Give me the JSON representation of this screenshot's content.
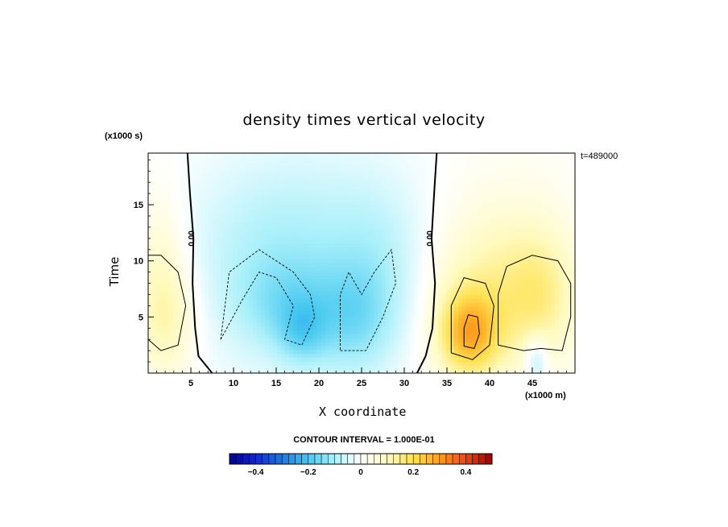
{
  "chart_data": {
    "type": "heatmap",
    "title": "density times vertical velocity",
    "xlabel": "X coordinate",
    "ylabel": "Time",
    "x_unit": "(x1000 m)",
    "y_unit": "(x1000 s)",
    "timestamp": "t=489000",
    "xlim": [
      0,
      50
    ],
    "ylim": [
      0,
      19.6
    ],
    "x_ticks": [
      5,
      10,
      15,
      20,
      25,
      30,
      35,
      40,
      45
    ],
    "y_ticks": [
      5,
      10,
      15
    ],
    "contour_interval_text": "CONTOUR INTERVAL = 1.000E-01",
    "contour_label": "0.00",
    "colorbar": {
      "range": [
        -0.5,
        0.5
      ],
      "ticks": [
        -0.4,
        -0.2,
        0,
        0.2,
        0.4
      ],
      "tick_labels": [
        "−0.4",
        "−0.2",
        "0",
        "0.2",
        "0.4"
      ]
    },
    "features": [
      {
        "x": 2.0,
        "y": 5.0,
        "sx": 2.6,
        "sy": 4.0,
        "v": 0.12
      },
      {
        "x": 1.5,
        "y": 12.0,
        "sx": 2.0,
        "sy": 4.0,
        "v": 0.05
      },
      {
        "x": 14.0,
        "y": 9.0,
        "sx": 7.0,
        "sy": 6.0,
        "v": -0.07
      },
      {
        "x": 16.5,
        "y": 6.0,
        "sx": 4.0,
        "sy": 3.0,
        "v": -0.08
      },
      {
        "x": 18.0,
        "y": 3.5,
        "sx": 2.0,
        "sy": 2.0,
        "v": -0.08
      },
      {
        "x": 24.0,
        "y": 4.5,
        "sx": 3.5,
        "sy": 3.5,
        "v": -0.1
      },
      {
        "x": 27.0,
        "y": 9.0,
        "sx": 4.0,
        "sy": 5.0,
        "v": -0.06
      },
      {
        "x": 20.0,
        "y": 14.0,
        "sx": 9.0,
        "sy": 5.0,
        "v": -0.04
      },
      {
        "x": 37.5,
        "y": 3.5,
        "sx": 2.5,
        "sy": 2.6,
        "v": 0.22
      },
      {
        "x": 39.0,
        "y": 7.0,
        "sx": 4.5,
        "sy": 5.0,
        "v": 0.08
      },
      {
        "x": 46.0,
        "y": 7.0,
        "sx": 3.0,
        "sy": 4.0,
        "v": 0.1
      },
      {
        "x": 43.0,
        "y": 9.0,
        "sx": 6.0,
        "sy": 7.0,
        "v": 0.05
      },
      {
        "x": 45.5,
        "y": 1.2,
        "sx": 1.0,
        "sy": 1.5,
        "v": -0.12
      }
    ]
  }
}
